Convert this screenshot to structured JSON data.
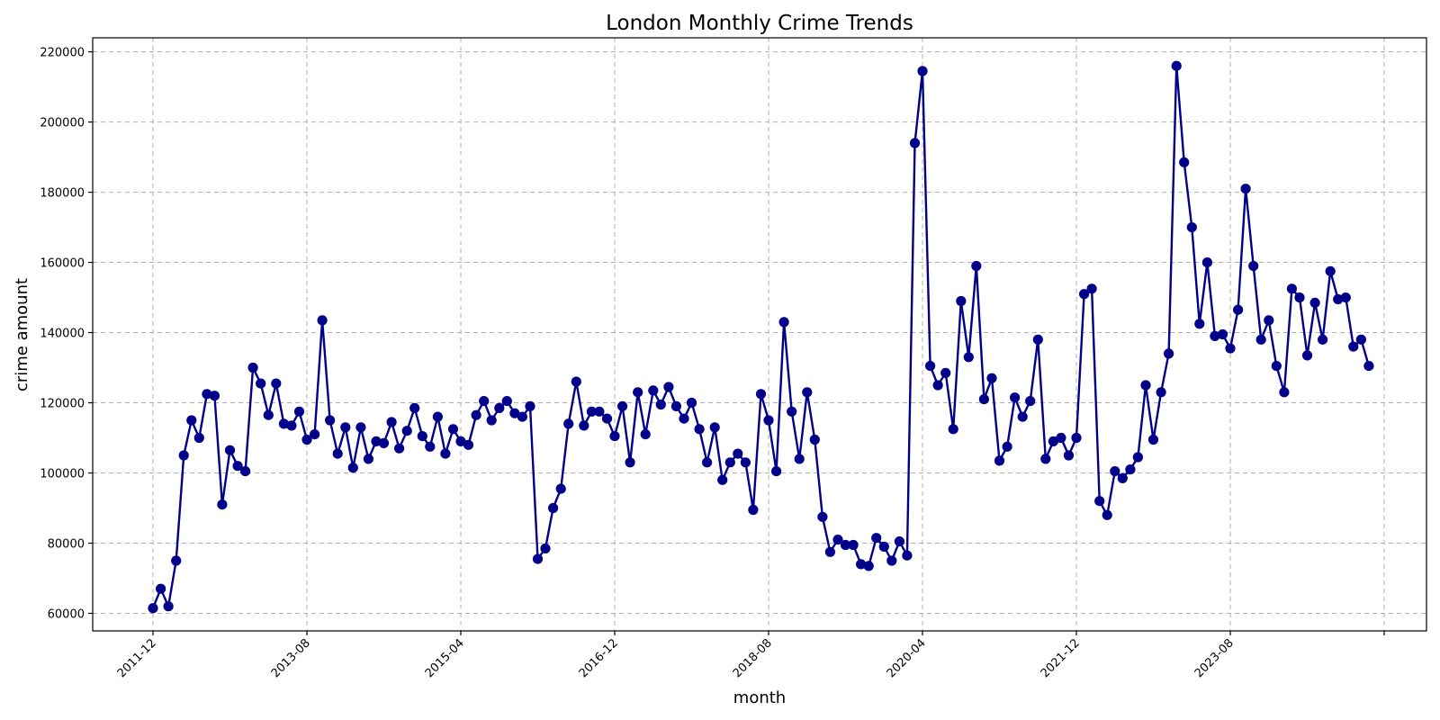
{
  "chart_data": {
    "type": "line",
    "title": "London Monthly Crime Trends",
    "xlabel": "month",
    "ylabel": "crime amount",
    "ylim": [
      55000,
      224000
    ],
    "grid": true,
    "line_color": "#00008b",
    "x_ticks": [
      {
        "index": 0,
        "label": "2011-12"
      },
      {
        "index": 20,
        "label": "2013-08"
      },
      {
        "index": 40,
        "label": "2015-04"
      },
      {
        "index": 60,
        "label": "2016-12"
      },
      {
        "index": 80,
        "label": "2018-08"
      },
      {
        "index": 100,
        "label": "2020-04"
      },
      {
        "index": 120,
        "label": "2021-12"
      },
      {
        "index": 140,
        "label": "2023-08"
      },
      {
        "index": 160,
        "label": ""
      }
    ],
    "y_ticks": [
      60000,
      80000,
      100000,
      120000,
      140000,
      160000,
      180000,
      200000,
      220000
    ],
    "series": [
      {
        "values": [
          61500,
          67000,
          62000,
          75000,
          105000,
          115000,
          110000,
          122500,
          122000,
          91000,
          106500,
          102000,
          100500,
          130000,
          125500,
          116500,
          125500,
          114000,
          113500,
          117500,
          109500,
          111000,
          143500,
          115000,
          105500,
          113000,
          101500,
          113000,
          104000,
          109000,
          108500,
          114500,
          107000,
          112000,
          118500,
          110500,
          107500,
          116000,
          105500,
          112500,
          109000,
          108000,
          116500,
          120500,
          115000,
          118500,
          120500,
          117000,
          116000,
          119000,
          75500,
          78500,
          90000,
          95500,
          114000,
          126000,
          113500,
          117500,
          117500,
          115500,
          110500,
          119000,
          103000,
          123000,
          111000,
          123500,
          119500,
          124500,
          119000,
          115500,
          120000,
          112500,
          103000,
          113000,
          98000,
          103000,
          105500,
          103000,
          89500,
          122500,
          115000,
          100500,
          143000,
          117500,
          104000,
          123000,
          109500,
          87500,
          77500,
          81000,
          79500,
          79500,
          74000,
          73500,
          81500,
          79000,
          75000,
          80500,
          76500,
          194000,
          214500,
          130500,
          125000,
          128500,
          112500,
          149000,
          133000,
          159000,
          121000,
          127000,
          103500,
          107500,
          121500,
          116000,
          120500,
          138000,
          104000,
          109000,
          110000,
          105000,
          110000,
          151000,
          152500,
          92000,
          88000,
          100500,
          98500,
          101000,
          104500,
          125000,
          109500,
          123000,
          134000,
          216000,
          188500,
          170000,
          142500,
          160000,
          139000,
          139500,
          135500,
          146500,
          181000,
          159000,
          138000,
          143500,
          130500,
          123000,
          152500,
          150000,
          133500,
          148500,
          138000,
          157500,
          149500,
          150000,
          136000,
          138000,
          130500
        ]
      }
    ]
  }
}
